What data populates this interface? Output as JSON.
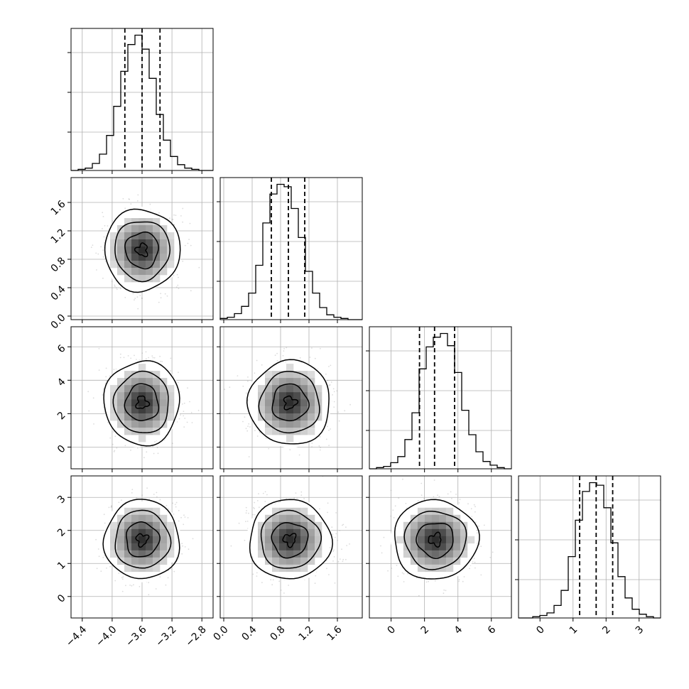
{
  "chart_data": {
    "type": "corner",
    "n_params": 4,
    "colors": {
      "line": "#000000",
      "grid": "#b0b0b0",
      "scatter": "#9a9a9a"
    },
    "quantile_lines": "dashed",
    "params": [
      {
        "ticks": [
          -4.4,
          -4.0,
          -3.6,
          -3.2,
          -2.8
        ],
        "tick_labels": [
          "−4.4",
          "−4.0",
          "−3.6",
          "−3.2",
          "−2.8"
        ],
        "range": [
          -4.55,
          -2.65
        ],
        "mean": -3.6,
        "sd": 0.21,
        "quantiles": [
          -3.83,
          -3.6,
          -3.36
        ],
        "hist": [
          0,
          1,
          2,
          6,
          14,
          30,
          55,
          85,
          108,
          116,
          104,
          79,
          48,
          26,
          12,
          5,
          2,
          1,
          0,
          0
        ]
      },
      {
        "ticks": [
          0.0,
          0.4,
          0.8,
          1.2,
          1.6
        ],
        "tick_labels": [
          "0.0",
          "0.4",
          "0.8",
          "1.2",
          "1.6"
        ],
        "range": [
          -0.05,
          1.95
        ],
        "mean": 0.93,
        "sd": 0.24,
        "quantiles": [
          0.67,
          0.91,
          1.14
        ],
        "hist": [
          1,
          2,
          5,
          11,
          22,
          45,
          80,
          104,
          112,
          110,
          92,
          68,
          40,
          22,
          10,
          4,
          2,
          1,
          0,
          0
        ]
      },
      {
        "ticks": [
          0,
          2,
          4,
          6
        ],
        "tick_labels": [
          "0",
          "2",
          "4",
          "6"
        ],
        "range": [
          -1.3,
          7.2
        ],
        "mean": 2.65,
        "sd": 1.05,
        "quantiles": [
          1.7,
          2.6,
          3.8
        ],
        "hist": [
          0,
          1,
          2,
          5,
          10,
          24,
          46,
          82,
          100,
          108,
          111,
          101,
          79,
          48,
          28,
          14,
          6,
          3,
          1,
          0
        ]
      },
      {
        "ticks": [
          0,
          1,
          2,
          3
        ],
        "tick_labels": [
          "0",
          "1",
          "2",
          "3"
        ],
        "range": [
          -0.65,
          3.65
        ],
        "mean": 1.72,
        "sd": 0.5,
        "quantiles": [
          1.2,
          1.7,
          2.2
        ],
        "hist": [
          0,
          0,
          1,
          2,
          4,
          10,
          22,
          49,
          78,
          101,
          108,
          106,
          88,
          60,
          33,
          16,
          7,
          3,
          1,
          0
        ]
      }
    ]
  }
}
